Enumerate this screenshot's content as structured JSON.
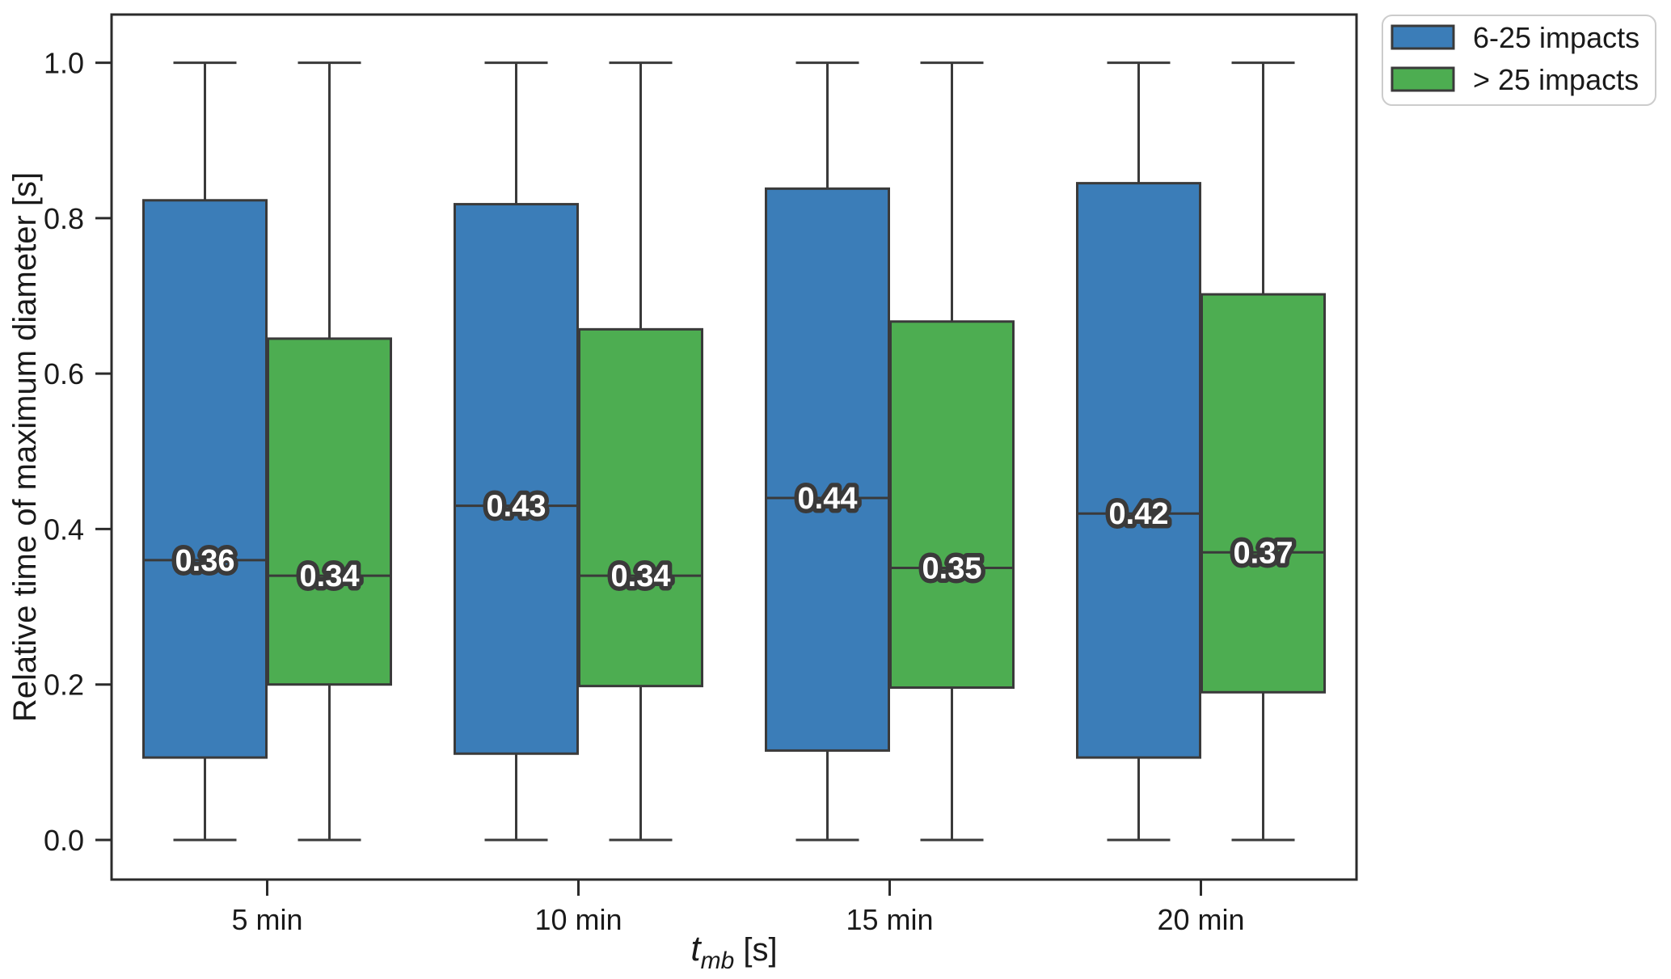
{
  "figure": {
    "background": "#ffffff"
  },
  "chart_data": {
    "type": "boxplot",
    "title": "",
    "xlabel": "t_mb [s]",
    "xlabel_parts": {
      "symbol": "t",
      "subscript": "mb",
      "suffix": "[s]"
    },
    "ylabel": "Relative time of maximum diameter [s]",
    "categories": [
      "5 min",
      "10 min",
      "15 min",
      "20 min"
    ],
    "yticks": [
      "0.0",
      "0.2",
      "0.4",
      "0.6",
      "0.8",
      "1.0"
    ],
    "ylim": [
      -0.051,
      1.062
    ],
    "grid": false,
    "legend": {
      "position": "upper-right-outside",
      "entries": [
        {
          "label": "6-25 impacts",
          "color": "#3b7db8"
        },
        {
          "label": "> 25 impacts",
          "color": "#4dad51"
        }
      ]
    },
    "colors": {
      "blue": "#3b7db8",
      "green": "#4dad51",
      "box_edge": "#3a3a3a",
      "spine": "#2b2b2b",
      "text": "#1a1a1a",
      "median_label_fill": "#ffffff",
      "legend_border": "#cccccc"
    },
    "series": [
      {
        "name": "6-25 impacts",
        "color": "#3b7db8",
        "boxes": [
          {
            "category": "5 min",
            "whisker_low": 0.0,
            "q1": 0.106,
            "median": 0.36,
            "q3": 0.823,
            "whisker_high": 1.0,
            "median_label": "0.36"
          },
          {
            "category": "10 min",
            "whisker_low": 0.0,
            "q1": 0.111,
            "median": 0.43,
            "q3": 0.818,
            "whisker_high": 1.0,
            "median_label": "0.43"
          },
          {
            "category": "15 min",
            "whisker_low": 0.0,
            "q1": 0.115,
            "median": 0.44,
            "q3": 0.838,
            "whisker_high": 1.0,
            "median_label": "0.44"
          },
          {
            "category": "20 min",
            "whisker_low": 0.0,
            "q1": 0.106,
            "median": 0.42,
            "q3": 0.845,
            "whisker_high": 1.0,
            "median_label": "0.42"
          }
        ]
      },
      {
        "name": "> 25 impacts",
        "color": "#4dad51",
        "boxes": [
          {
            "category": "5 min",
            "whisker_low": 0.0,
            "q1": 0.2,
            "median": 0.34,
            "q3": 0.645,
            "whisker_high": 1.0,
            "median_label": "0.34"
          },
          {
            "category": "10 min",
            "whisker_low": 0.0,
            "q1": 0.198,
            "median": 0.34,
            "q3": 0.657,
            "whisker_high": 1.0,
            "median_label": "0.34"
          },
          {
            "category": "15 min",
            "whisker_low": 0.0,
            "q1": 0.196,
            "median": 0.35,
            "q3": 0.667,
            "whisker_high": 1.0,
            "median_label": "0.35"
          },
          {
            "category": "20 min",
            "whisker_low": 0.0,
            "q1": 0.19,
            "median": 0.37,
            "q3": 0.702,
            "whisker_high": 1.0,
            "median_label": "0.37"
          }
        ]
      }
    ]
  }
}
